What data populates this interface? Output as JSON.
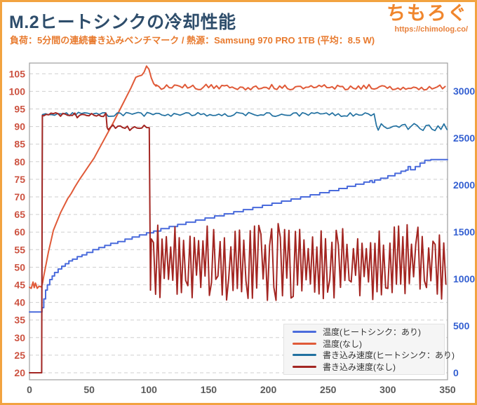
{
  "page": {
    "title": "M.2ヒートシンクの冷却性能",
    "subtitle": "負荷：5分間の連続書き込みベンチマーク / 熱源：Samsung 970 PRO 1TB (平均：8.5 W)",
    "logo": {
      "name": "ちもろぐ",
      "url": "https://chimolog.co/"
    },
    "colors": {
      "frame": "#F2A340",
      "title": "#2E4D6B",
      "subtitle": "#E87A2E",
      "logo": "#F0862D"
    }
  },
  "chart_data": {
    "type": "line",
    "title": "M.2ヒートシンクの冷却性能",
    "xlabel": "",
    "ylabel_left": "",
    "ylabel_right": "",
    "x_axis": {
      "range": [
        0,
        350
      ],
      "ticks": [
        0,
        50,
        100,
        150,
        200,
        250,
        300,
        350
      ],
      "color": "#5A5A5A"
    },
    "left_axis": {
      "range": [
        20,
        105
      ],
      "ticks": [
        105,
        100,
        95,
        90,
        85,
        80,
        75,
        70,
        65,
        60,
        55,
        50,
        45,
        40,
        35,
        30,
        25,
        20
      ],
      "color": "#CC5240"
    },
    "right_axis": {
      "range": [
        0,
        3000
      ],
      "ticks": [
        3000,
        2500,
        2000,
        1500,
        1000,
        500,
        0
      ],
      "color": "#335FD1"
    },
    "grid": {
      "on": true,
      "style": "dashed",
      "color": "#CFCFCF",
      "spine": "#9E9E9E"
    },
    "legend": {
      "position": "bottom-right",
      "bg": "#F5F5F5",
      "border": "#E2E2E2",
      "text_color": "#333333"
    },
    "series": [
      {
        "name": "温度(ヒートシンク：あり)",
        "color": "#4A6BDC",
        "axis": "temp",
        "width": 2,
        "step": true,
        "segments": [
          {
            "points": [
              [
                0,
                37.3
              ],
              [
                9.5,
                37.3
              ],
              [
                10.5,
                38.5
              ],
              [
                12,
                41
              ],
              [
                13.5,
                43.5
              ],
              [
                15,
                45
              ],
              [
                17,
                46.5
              ],
              [
                19,
                47.5
              ],
              [
                21,
                48.5
              ],
              [
                24,
                49.5
              ],
              [
                27,
                50.3
              ],
              [
                30,
                51
              ],
              [
                33,
                51.8
              ],
              [
                36,
                52.3
              ],
              [
                40,
                53
              ],
              [
                44,
                53.5
              ],
              [
                48,
                54.2
              ],
              [
                53,
                55
              ],
              [
                58,
                55.6
              ],
              [
                63,
                56.2
              ],
              [
                68,
                56.8
              ],
              [
                74,
                57.3
              ],
              [
                80,
                58
              ],
              [
                86,
                58.6
              ],
              [
                92,
                59.2
              ],
              [
                98,
                59.8
              ],
              [
                104,
                60.3
              ],
              [
                110,
                61
              ],
              [
                117,
                61.6
              ],
              [
                124,
                62.2
              ],
              [
                131,
                62.8
              ],
              [
                139,
                63.4
              ],
              [
                147,
                64
              ],
              [
                155,
                64.6
              ],
              [
                163,
                65.2
              ],
              [
                171,
                65.8
              ],
              [
                179,
                66.4
              ],
              [
                187,
                67
              ],
              [
                195,
                67.6
              ],
              [
                203,
                68.2
              ],
              [
                211,
                68.8
              ],
              [
                219,
                69.4
              ],
              [
                227,
                70
              ],
              [
                235,
                70.6
              ],
              [
                243,
                71.2
              ],
              [
                251,
                71.8
              ],
              [
                259,
                72.4
              ],
              [
                266,
                73
              ],
              [
                273,
                73.6
              ],
              [
                280,
                74.2
              ],
              [
                285,
                74.6
              ],
              [
                287,
                74.1
              ],
              [
                289,
                74.8
              ],
              [
                294,
                75.3
              ],
              [
                300,
                76
              ],
              [
                306,
                76.7
              ],
              [
                311,
                77.3
              ],
              [
                315,
                77.6
              ],
              [
                317,
                78.6
              ],
              [
                319,
                77.7
              ],
              [
                323,
                78.6
              ],
              [
                327,
                79.6
              ],
              [
                331,
                80.4
              ],
              [
                336,
                80.6
              ],
              [
                350,
                80.6
              ]
            ]
          }
        ]
      },
      {
        "name": "温度(なし)",
        "color": "#E05A38",
        "axis": "temp",
        "width": 2,
        "segments": [
          {
            "points": [
              [
                0,
                44.3
              ],
              [
                1.5,
                44
              ],
              [
                3,
                45.8
              ],
              [
                4,
                44.2
              ],
              [
                5,
                45.5
              ],
              [
                6.5,
                44
              ],
              [
                8,
                44.6
              ],
              [
                10,
                44.4
              ],
              [
                11,
                45.5
              ],
              [
                12,
                47.5
              ],
              [
                14,
                51
              ],
              [
                16,
                54.5
              ],
              [
                18,
                57.5
              ],
              [
                20,
                60.5
              ],
              [
                23,
                63
              ],
              [
                26,
                65.5
              ],
              [
                29,
                67.5
              ],
              [
                32,
                69.5
              ],
              [
                35,
                71
              ],
              [
                38,
                72.8
              ],
              [
                42,
                75
              ],
              [
                46,
                77
              ],
              [
                50,
                79
              ],
              [
                54,
                81
              ],
              [
                58,
                83.5
              ],
              [
                62,
                86
              ],
              [
                66,
                88.5
              ],
              [
                70,
                91
              ],
              [
                73,
                93
              ],
              [
                76,
                95
              ],
              [
                79,
                97
              ],
              [
                82,
                99
              ],
              [
                85,
                101
              ],
              [
                87,
                102.5
              ],
              [
                89,
                104
              ],
              [
                91,
                104.3
              ],
              [
                94,
                104.6
              ],
              [
                96,
                105.5
              ],
              [
                98,
                107.2
              ],
              [
                100,
                106.3
              ],
              [
                102,
                103.8
              ],
              [
                104,
                102.2
              ],
              [
                106,
                101.5
              ]
            ]
          },
          {
            "noise": {
              "from": 106,
              "to": 350,
              "step": 2.2,
              "base": 101.2,
              "amp": 0.8
            }
          }
        ]
      },
      {
        "name": "書き込み速度(ヒートシンク：あり)",
        "color": "#2170A0",
        "axis": "speed",
        "width": 1.7,
        "segments": [
          {
            "points": [
              [
                0,
                0
              ],
              [
                10.2,
                0
              ],
              [
                10.8,
                2748
              ]
            ]
          },
          {
            "noise": {
              "from": 11,
              "to": 289,
              "step": 2.5,
              "base": 2752,
              "amp": 22
            }
          },
          {
            "points": [
              [
                290.5,
                2630
              ]
            ]
          },
          {
            "noise": {
              "from": 292,
              "to": 350,
              "step": 2.5,
              "base": 2615,
              "amp": 40
            }
          }
        ]
      },
      {
        "name": "書き込み速度(なし)",
        "color": "#A32622",
        "axis": "speed",
        "width": 2,
        "segments": [
          {
            "points": [
              [
                0,
                0
              ],
              [
                10.2,
                0
              ],
              [
                10.8,
                2740
              ]
            ]
          },
          {
            "noise": {
              "from": 12,
              "to": 64,
              "step": 2,
              "base": 2742,
              "amp": 28
            }
          },
          {
            "points": [
              [
                65,
                2612
              ]
            ]
          },
          {
            "noise": {
              "from": 66,
              "to": 99,
              "step": 2,
              "base": 2612,
              "amp": 33
            }
          },
          {
            "points": [
              [
                100.3,
                2610
              ],
              [
                101.3,
                880
              ]
            ]
          },
          {
            "osc": {
              "from": 102,
              "to": 350,
              "step": 1.8,
              "base": 1180,
              "min_dev": 140,
              "max_dev": 410
            }
          }
        ]
      }
    ]
  }
}
